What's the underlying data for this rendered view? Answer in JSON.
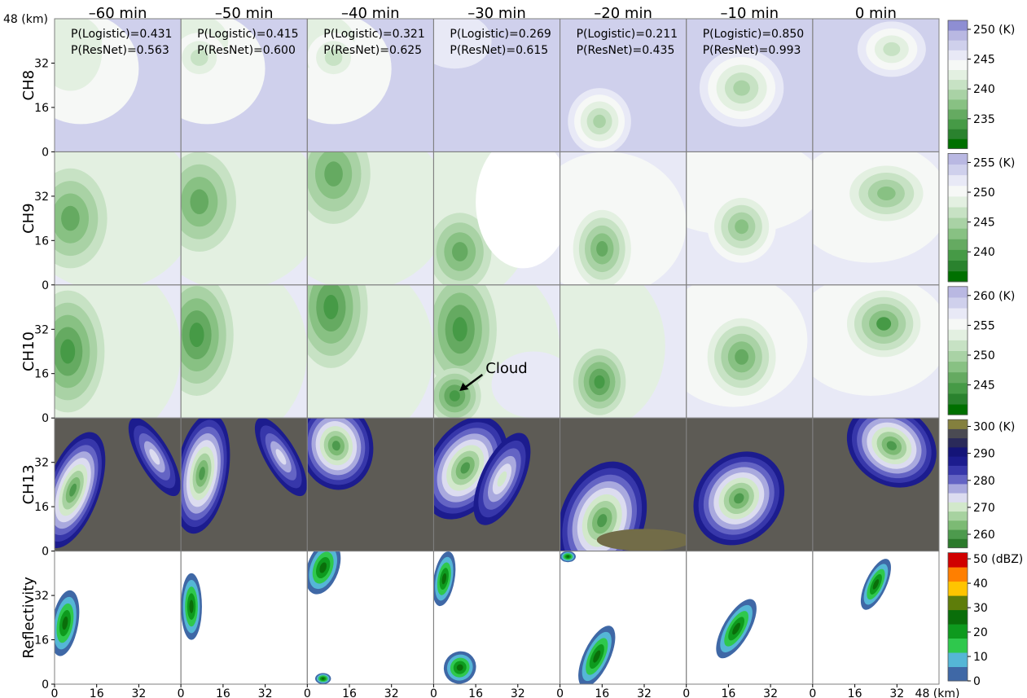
{
  "chart_data": {
    "type": "heatmap",
    "time_labels": [
      "–60 min",
      "–50 min",
      "–40 min",
      "–30 min",
      "–20 min",
      "–10 min",
      "0 min"
    ],
    "row_labels": [
      "CH8",
      "CH9",
      "CH10",
      "CH13",
      "Reflectivity"
    ],
    "x_ticks": [
      "0",
      "16",
      "32"
    ],
    "y_ticks": [
      "0",
      "16",
      "32"
    ],
    "x_unit_label": "48 (km)",
    "y_unit_label": "48 (km)",
    "xlim": [
      0,
      48
    ],
    "ylim": [
      0,
      48
    ],
    "probabilities": [
      {
        "logistic": "P(Logistic)=0.431",
        "resnet": "P(ResNet)=0.563"
      },
      {
        "logistic": "P(Logistic)=0.415",
        "resnet": "P(ResNet)=0.600"
      },
      {
        "logistic": "P(Logistic)=0.321",
        "resnet": "P(ResNet)=0.625"
      },
      {
        "logistic": "P(Logistic)=0.269",
        "resnet": "P(ResNet)=0.615"
      },
      {
        "logistic": "P(Logistic)=0.211",
        "resnet": "P(ResNet)=0.435"
      },
      {
        "logistic": "P(Logistic)=0.850",
        "resnet": "P(ResNet)=0.993"
      },
      {
        "logistic": "",
        "resnet": ""
      }
    ],
    "annotation": {
      "text": "Cloud",
      "row": 2,
      "col": 3,
      "target_km": [
        8,
        8
      ]
    },
    "colorbars": [
      {
        "row": "CH8",
        "ticks": [
          "250 (K)",
          "245",
          "240",
          "235"
        ],
        "tick_values": [
          250,
          245,
          240,
          235
        ],
        "range": [
          230,
          251.5
        ],
        "colors": [
          "#007000",
          "#2a822e",
          "#469a46",
          "#65aa61",
          "#88c183",
          "#a9d2a5",
          "#c7e2c4",
          "#e3f0e1",
          "#f6f8f6",
          "#e8e9f6",
          "#cfd0ec",
          "#b9b8e2",
          "#8e8ed3"
        ]
      },
      {
        "row": "CH9",
        "ticks": [
          "255 (K)",
          "250",
          "245",
          "240"
        ],
        "tick_values": [
          255,
          250,
          245,
          240
        ],
        "range": [
          235,
          256.5
        ],
        "colors": [
          "#007000",
          "#2a822e",
          "#469a46",
          "#65aa61",
          "#88c183",
          "#a9d2a5",
          "#c7e2c4",
          "#e3f0e1",
          "#f6f8f6",
          "#e8e9f6",
          "#cfd0ec",
          "#b9b8e2"
        ]
      },
      {
        "row": "CH10",
        "ticks": [
          "260 (K)",
          "255",
          "250",
          "245"
        ],
        "tick_values": [
          260,
          255,
          250,
          245
        ],
        "range": [
          240,
          261.5
        ],
        "colors": [
          "#007000",
          "#2a822e",
          "#469a46",
          "#65aa61",
          "#88c183",
          "#a9d2a5",
          "#c7e2c4",
          "#e3f0e1",
          "#f6f8f6",
          "#e8e9f6",
          "#cfd0ec",
          "#b9b8e2"
        ]
      },
      {
        "row": "CH13",
        "ticks": [
          "300 (K)",
          "290",
          "280",
          "270",
          "260"
        ],
        "tick_values": [
          300,
          290,
          280,
          270,
          260
        ],
        "range": [
          255,
          302.5
        ],
        "colors": [
          "#2b7a2b",
          "#4d9a4d",
          "#7cba74",
          "#a7d2a0",
          "#d2e8cb",
          "#dcdcf0",
          "#a9a9de",
          "#6464c4",
          "#3737aa",
          "#1c1c8e",
          "#141478",
          "#2a2a5a",
          "#4a4a52",
          "#84803e"
        ]
      },
      {
        "row": "Reflectivity",
        "ticks": [
          "50 (dBZ)",
          "40",
          "30",
          "20",
          "10",
          "0"
        ],
        "tick_values": [
          50,
          40,
          30,
          20,
          10,
          0
        ],
        "range": [
          0,
          52.5
        ],
        "colors": [
          "#3f68a6",
          "#55b6d6",
          "#2fc84d",
          "#0e9a1e",
          "#0a6e0a",
          "#5e7d0a",
          "#ffc400",
          "#ff7f00",
          "#d00000"
        ]
      }
    ],
    "row_backgrounds": [
      "#cfd0ec",
      "#e8e9f6",
      "#e8e9f6",
      "#5d5b55",
      "#ffffff"
    ]
  }
}
